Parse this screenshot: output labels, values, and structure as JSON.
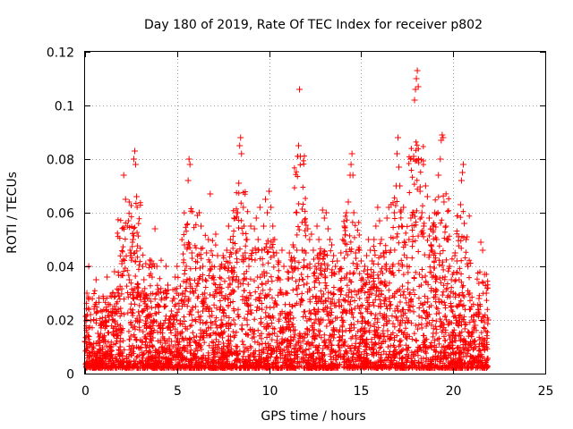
{
  "chart_data": {
    "type": "scatter",
    "title": "Day 180 of 2019, Rate Of TEC Index for receiver p802",
    "xlabel": "GPS time / hours",
    "ylabel": "ROTI / TECUs",
    "xlim": [
      0,
      25
    ],
    "ylim": [
      0,
      0.12
    ],
    "x_ticks": [
      0,
      5,
      10,
      15,
      20,
      25
    ],
    "x_tick_labels": [
      "0",
      "5",
      "10",
      "15",
      "20",
      "25"
    ],
    "y_ticks": [
      0,
      0.02,
      0.04,
      0.06,
      0.08,
      0.1,
      0.12
    ],
    "y_tick_labels": [
      "0",
      "0.02",
      "0.04",
      "0.06",
      "0.08",
      "0.1",
      "0.12"
    ],
    "grid": true,
    "marker": "+",
    "series": [
      {
        "name": "ROTI",
        "color": "#ff0000",
        "points": [
          [
            0.0,
            0.012
          ],
          [
            0.1,
            0.03
          ],
          [
            0.2,
            0.04
          ],
          [
            0.3,
            0.022
          ],
          [
            0.4,
            0.01
          ],
          [
            0.5,
            0.025
          ],
          [
            0.6,
            0.035
          ],
          [
            0.7,
            0.015
          ],
          [
            0.8,
            0.008
          ],
          [
            0.9,
            0.018
          ],
          [
            1.0,
            0.028
          ],
          [
            1.1,
            0.012
          ],
          [
            1.2,
            0.036
          ],
          [
            1.3,
            0.02
          ],
          [
            1.4,
            0.009
          ],
          [
            1.5,
            0.03
          ],
          [
            1.6,
            0.038
          ],
          [
            1.7,
            0.014
          ],
          [
            1.8,
            0.024
          ],
          [
            1.9,
            0.01
          ],
          [
            2.0,
            0.041
          ],
          [
            2.1,
            0.074
          ],
          [
            2.2,
            0.065
          ],
          [
            2.3,
            0.055
          ],
          [
            2.4,
            0.035
          ],
          [
            2.5,
            0.045
          ],
          [
            2.6,
            0.05
          ],
          [
            2.65,
            0.08
          ],
          [
            2.7,
            0.083
          ],
          [
            2.75,
            0.078
          ],
          [
            2.8,
            0.066
          ],
          [
            2.9,
            0.03
          ],
          [
            3.0,
            0.02
          ],
          [
            3.1,
            0.012
          ],
          [
            3.2,
            0.035
          ],
          [
            3.3,
            0.041
          ],
          [
            3.4,
            0.025
          ],
          [
            3.5,
            0.015
          ],
          [
            3.6,
            0.042
          ],
          [
            3.7,
            0.041
          ],
          [
            3.8,
            0.054
          ],
          [
            3.9,
            0.04
          ],
          [
            4.0,
            0.03
          ],
          [
            4.1,
            0.018
          ],
          [
            4.2,
            0.01
          ],
          [
            4.3,
            0.025
          ],
          [
            4.4,
            0.04
          ],
          [
            4.5,
            0.033
          ],
          [
            4.6,
            0.02
          ],
          [
            4.7,
            0.012
          ],
          [
            4.8,
            0.028
          ],
          [
            4.9,
            0.036
          ],
          [
            5.0,
            0.04
          ],
          [
            5.1,
            0.024
          ],
          [
            5.2,
            0.015
          ],
          [
            5.3,
            0.03
          ],
          [
            5.4,
            0.048
          ],
          [
            5.5,
            0.04
          ],
          [
            5.6,
            0.072
          ],
          [
            5.65,
            0.08
          ],
          [
            5.7,
            0.078
          ],
          [
            5.8,
            0.045
          ],
          [
            5.9,
            0.03
          ],
          [
            6.0,
            0.025
          ],
          [
            6.1,
            0.059
          ],
          [
            6.2,
            0.06
          ],
          [
            6.3,
            0.055
          ],
          [
            6.4,
            0.04
          ],
          [
            6.5,
            0.03
          ],
          [
            6.6,
            0.045
          ],
          [
            6.7,
            0.05
          ],
          [
            6.8,
            0.067
          ],
          [
            6.9,
            0.04
          ],
          [
            7.0,
            0.035
          ],
          [
            7.1,
            0.052
          ],
          [
            7.2,
            0.044
          ],
          [
            7.3,
            0.03
          ],
          [
            7.4,
            0.02
          ],
          [
            7.5,
            0.044
          ],
          [
            7.6,
            0.04
          ],
          [
            7.7,
            0.046
          ],
          [
            7.8,
            0.055
          ],
          [
            7.9,
            0.05
          ],
          [
            8.0,
            0.035
          ],
          [
            8.1,
            0.058
          ],
          [
            8.2,
            0.045
          ],
          [
            8.3,
            0.06
          ],
          [
            8.35,
            0.071
          ],
          [
            8.4,
            0.085
          ],
          [
            8.45,
            0.088
          ],
          [
            8.5,
            0.082
          ],
          [
            8.6,
            0.062
          ],
          [
            8.7,
            0.045
          ],
          [
            8.8,
            0.05
          ],
          [
            8.9,
            0.04
          ],
          [
            9.0,
            0.055
          ],
          [
            9.1,
            0.046
          ],
          [
            9.2,
            0.054
          ],
          [
            9.3,
            0.058
          ],
          [
            9.4,
            0.05
          ],
          [
            9.5,
            0.062
          ],
          [
            9.6,
            0.046
          ],
          [
            9.7,
            0.055
          ],
          [
            9.8,
            0.065
          ],
          [
            9.9,
            0.06
          ],
          [
            10.0,
            0.068
          ],
          [
            10.1,
            0.062
          ],
          [
            10.2,
            0.055
          ],
          [
            10.3,
            0.05
          ],
          [
            10.4,
            0.045
          ],
          [
            10.5,
            0.042
          ],
          [
            10.6,
            0.035
          ],
          [
            10.7,
            0.046
          ],
          [
            10.8,
            0.04
          ],
          [
            10.9,
            0.03
          ],
          [
            11.0,
            0.038
          ],
          [
            11.1,
            0.045
          ],
          [
            11.2,
            0.04
          ],
          [
            11.3,
            0.048
          ],
          [
            11.4,
            0.042
          ],
          [
            11.5,
            0.06
          ],
          [
            11.6,
            0.085
          ],
          [
            11.65,
            0.106
          ],
          [
            11.7,
            0.081
          ],
          [
            11.8,
            0.046
          ],
          [
            11.9,
            0.04
          ],
          [
            12.0,
            0.045
          ],
          [
            12.1,
            0.054
          ],
          [
            12.2,
            0.05
          ],
          [
            12.3,
            0.052
          ],
          [
            12.4,
            0.046
          ],
          [
            12.5,
            0.04
          ],
          [
            12.6,
            0.055
          ],
          [
            12.7,
            0.05
          ],
          [
            12.8,
            0.045
          ],
          [
            12.9,
            0.061
          ],
          [
            13.0,
            0.058
          ],
          [
            13.1,
            0.06
          ],
          [
            13.2,
            0.054
          ],
          [
            13.3,
            0.05
          ],
          [
            13.4,
            0.048
          ],
          [
            13.5,
            0.044
          ],
          [
            13.6,
            0.04
          ],
          [
            13.7,
            0.042
          ],
          [
            13.8,
            0.038
          ],
          [
            13.9,
            0.045
          ],
          [
            14.0,
            0.05
          ],
          [
            14.1,
            0.055
          ],
          [
            14.2,
            0.06
          ],
          [
            14.3,
            0.064
          ],
          [
            14.4,
            0.074
          ],
          [
            14.45,
            0.078
          ],
          [
            14.5,
            0.082
          ],
          [
            14.55,
            0.074
          ],
          [
            14.6,
            0.06
          ],
          [
            14.7,
            0.045
          ],
          [
            14.8,
            0.04
          ],
          [
            14.9,
            0.046
          ],
          [
            15.0,
            0.042
          ],
          [
            15.1,
            0.035
          ],
          [
            15.2,
            0.04
          ],
          [
            15.3,
            0.044
          ],
          [
            15.4,
            0.05
          ],
          [
            15.5,
            0.046
          ],
          [
            15.6,
            0.042
          ],
          [
            15.7,
            0.05
          ],
          [
            15.8,
            0.055
          ],
          [
            15.9,
            0.062
          ],
          [
            16.0,
            0.057
          ],
          [
            16.1,
            0.05
          ],
          [
            16.2,
            0.045
          ],
          [
            16.3,
            0.04
          ],
          [
            16.4,
            0.058
          ],
          [
            16.5,
            0.062
          ],
          [
            16.6,
            0.046
          ],
          [
            16.7,
            0.04
          ],
          [
            16.8,
            0.06
          ],
          [
            16.9,
            0.07
          ],
          [
            16.95,
            0.082
          ],
          [
            17.0,
            0.088
          ],
          [
            17.05,
            0.077
          ],
          [
            17.1,
            0.07
          ],
          [
            17.2,
            0.055
          ],
          [
            17.3,
            0.062
          ],
          [
            17.4,
            0.048
          ],
          [
            17.5,
            0.04
          ],
          [
            17.6,
            0.05
          ],
          [
            17.7,
            0.058
          ],
          [
            17.8,
            0.06
          ],
          [
            17.85,
            0.081
          ],
          [
            17.9,
            0.102
          ],
          [
            17.95,
            0.106
          ],
          [
            18.0,
            0.11
          ],
          [
            18.05,
            0.113
          ],
          [
            18.1,
            0.107
          ],
          [
            18.2,
            0.068
          ],
          [
            18.3,
            0.06
          ],
          [
            18.4,
            0.055
          ],
          [
            18.5,
            0.07
          ],
          [
            18.6,
            0.066
          ],
          [
            18.7,
            0.058
          ],
          [
            18.8,
            0.048
          ],
          [
            18.9,
            0.055
          ],
          [
            19.0,
            0.06
          ],
          [
            19.1,
            0.05
          ],
          [
            19.2,
            0.074
          ],
          [
            19.3,
            0.08
          ],
          [
            19.35,
            0.087
          ],
          [
            19.4,
            0.089
          ],
          [
            19.45,
            0.088
          ],
          [
            19.5,
            0.064
          ],
          [
            19.6,
            0.055
          ],
          [
            19.7,
            0.05
          ],
          [
            19.8,
            0.04
          ],
          [
            19.9,
            0.035
          ],
          [
            20.0,
            0.03
          ],
          [
            20.1,
            0.045
          ],
          [
            20.2,
            0.042
          ],
          [
            20.3,
            0.051
          ],
          [
            20.4,
            0.063
          ],
          [
            20.45,
            0.072
          ],
          [
            20.5,
            0.075
          ],
          [
            20.55,
            0.078
          ],
          [
            20.6,
            0.056
          ],
          [
            20.7,
            0.05
          ],
          [
            20.8,
            0.04
          ],
          [
            20.9,
            0.03
          ],
          [
            21.0,
            0.025
          ],
          [
            21.1,
            0.02
          ],
          [
            21.2,
            0.018
          ],
          [
            21.3,
            0.022
          ],
          [
            21.4,
            0.028
          ],
          [
            21.5,
            0.049
          ],
          [
            21.6,
            0.046
          ],
          [
            21.7,
            0.037
          ],
          [
            21.8,
            0.03
          ],
          [
            21.9,
            0.02
          ]
        ]
      }
    ]
  }
}
